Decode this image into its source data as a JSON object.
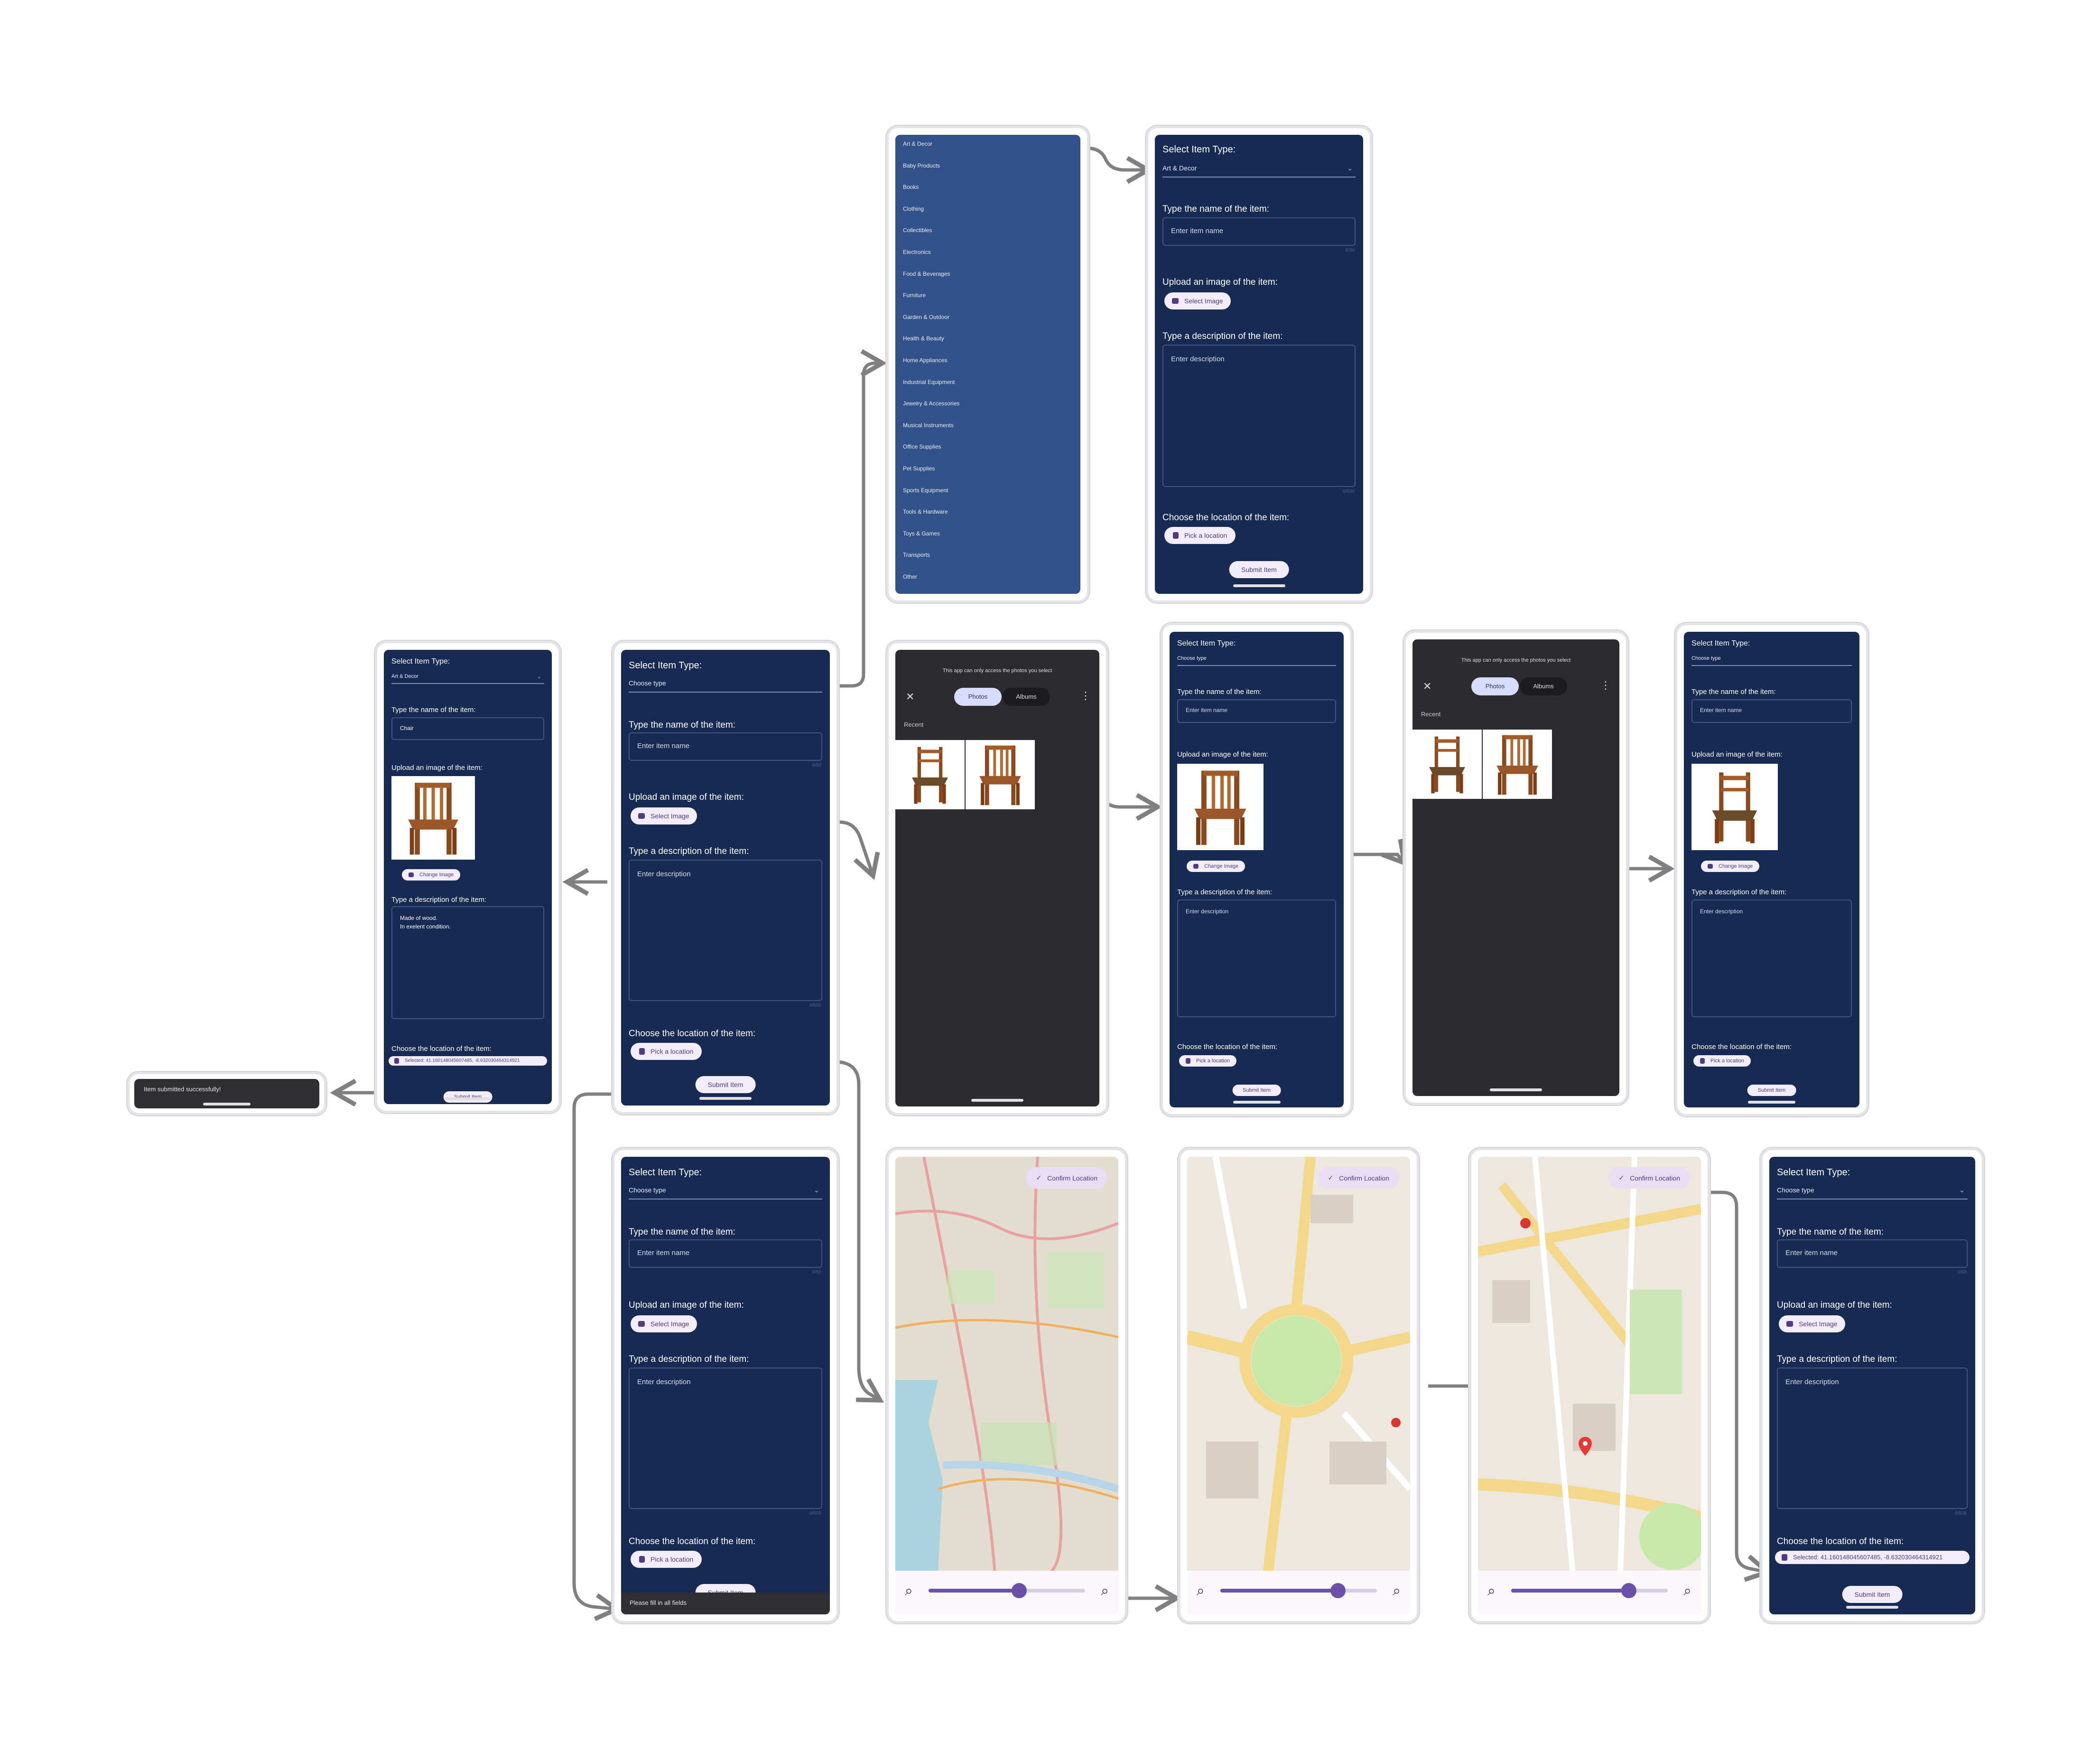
{
  "form": {
    "select_type_label": "Select Item Type:",
    "choose_type": "Choose type",
    "name_label": "Type the name of the item:",
    "name_placeholder": "Enter item name",
    "upload_label": "Upload an image of the item:",
    "select_image": "Select Image",
    "change_image": "Change Image",
    "description_label": "Type a description of the item:",
    "description_placeholder": "Enter description",
    "location_label": "Choose the location of the item:",
    "pick_location": "Pick a location",
    "submit": "Submit Item",
    "name_counter": "0/50",
    "desc_counter": "0/500"
  },
  "dropdown": {
    "items": [
      "Art & Decor",
      "Baby Products",
      "Books",
      "Clothing",
      "Collectibles",
      "Electronics",
      "Food & Beverages",
      "Furniture",
      "Garden & Outdoor",
      "Health & Beauty",
      "Home Appliances",
      "Industrial Equipment",
      "Jewelry & Accessories",
      "Musical Instruments",
      "Office Supplies",
      "Pet Supplies",
      "Sports Equipment",
      "Tools & Hardware",
      "Toys & Games",
      "Transports",
      "Other"
    ]
  },
  "selected_type": "Art & Decor",
  "filled": {
    "name": "Chair",
    "description_line1": "Made of wood.",
    "description_line2": "In exelent condition.",
    "selected_location": "Selected: 41.16014804560748​5, -8.632030464314921"
  },
  "final_location": "Selected: 41.160148045607485, -8.632030464314921",
  "photo_picker": {
    "notice": "This app can only access the photos you select",
    "tab_photos": "Photos",
    "tab_albums": "Albums",
    "recent": "Recent"
  },
  "map": {
    "confirm": "Confirm Location"
  },
  "messages": {
    "success": "Item submitted successfully!",
    "error": "Please fill in all fields"
  },
  "colors": {
    "form_bg": "#162a53",
    "dropdown_bg": "#34528a",
    "picker_bg": "#2c2c30",
    "accent": "#4f3a85",
    "pill_bg": "#f3edfa",
    "arrow": "#808080"
  }
}
